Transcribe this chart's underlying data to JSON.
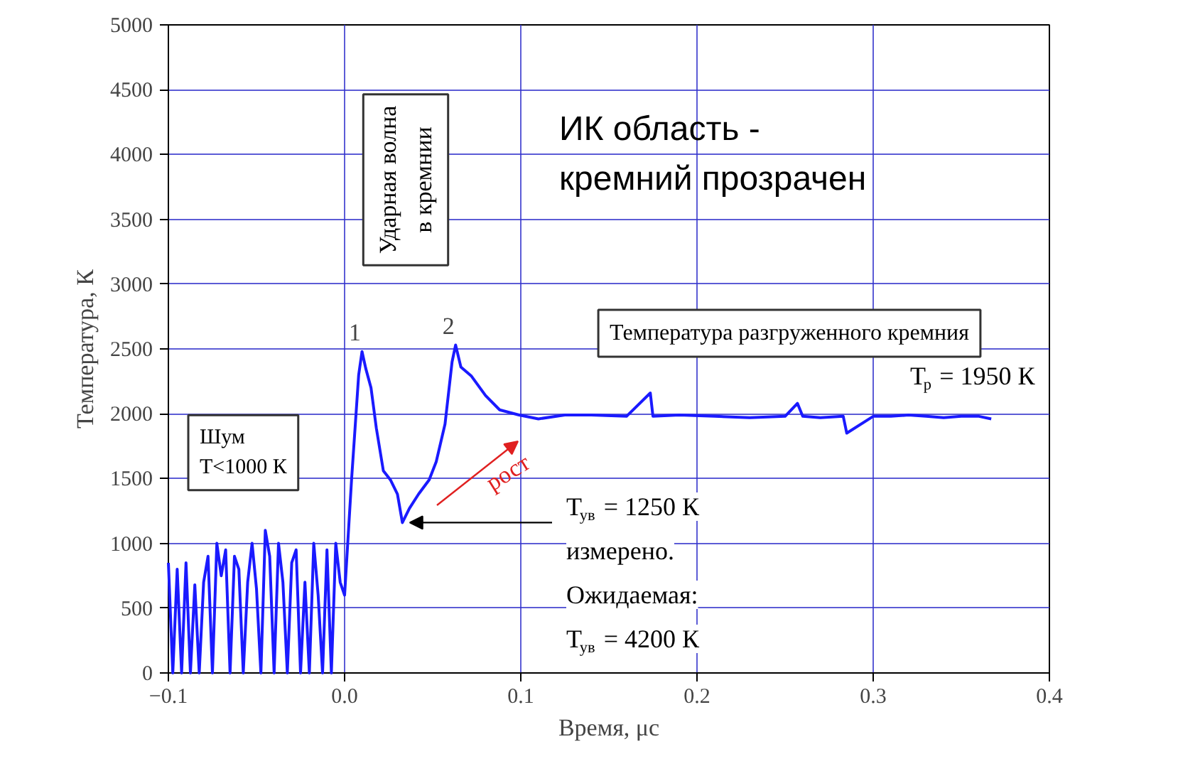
{
  "chart_data": {
    "type": "line",
    "xlabel": "Время, μс",
    "ylabel": "Температура, К",
    "xlim": [
      -0.1,
      0.4
    ],
    "ylim": [
      0,
      5000
    ],
    "xticks": [
      -0.1,
      {
        "value": 0,
        "label": "0.0"
      },
      0.1,
      0.2,
      0.3,
      0.4
    ],
    "yticks": [
      0,
      500,
      1000,
      1500,
      2000,
      2500,
      3000,
      3500,
      4000,
      4500,
      5000
    ],
    "grid": true,
    "marker": "none",
    "line_style": "solid",
    "series": [
      {
        "color": "#1a1aff",
        "x": [
          -0.1,
          -0.0975,
          -0.095,
          -0.0925,
          -0.09,
          -0.0875,
          -0.085,
          -0.0825,
          -0.08,
          -0.0775,
          -0.075,
          -0.0725,
          -0.07,
          -0.0675,
          -0.065,
          -0.0625,
          -0.06,
          -0.0575,
          -0.055,
          -0.0525,
          -0.05,
          -0.0475,
          -0.045,
          -0.0425,
          -0.04,
          -0.0375,
          -0.035,
          -0.0325,
          -0.03,
          -0.0275,
          -0.025,
          -0.0225,
          -0.02,
          -0.0175,
          -0.015,
          -0.0125,
          -0.01,
          -0.0075,
          -0.005,
          -0.0025,
          0.0,
          0.004,
          0.008,
          0.0099,
          0.012,
          0.015,
          0.018,
          0.022,
          0.026,
          0.03,
          0.0328,
          0.0368,
          0.042,
          0.048,
          0.052,
          0.057,
          0.061,
          0.063,
          0.066,
          0.072,
          0.08,
          0.088,
          0.099,
          0.11,
          0.125,
          0.14,
          0.16,
          0.1735,
          0.175,
          0.19,
          0.21,
          0.23,
          0.25,
          0.257,
          0.26,
          0.27,
          0.283,
          0.285,
          0.3,
          0.31,
          0.32,
          0.33,
          0.34,
          0.35,
          0.36,
          0.367
        ],
        "values": [
          850,
          0,
          800,
          0,
          850,
          0,
          680,
          0,
          700,
          900,
          0,
          1000,
          750,
          950,
          0,
          900,
          800,
          0,
          700,
          1000,
          650,
          0,
          1100,
          900,
          0,
          1000,
          700,
          0,
          850,
          950,
          0,
          700,
          0,
          1000,
          600,
          0,
          950,
          0,
          1000,
          700,
          600,
          1500,
          2300,
          2480,
          2350,
          2200,
          1890,
          1560,
          1490,
          1380,
          1160,
          1270,
          1380,
          1490,
          1630,
          1920,
          2400,
          2530,
          2360,
          2290,
          2140,
          2030,
          1990,
          1960,
          1990,
          1990,
          1980,
          2160,
          1980,
          1990,
          1980,
          1970,
          1980,
          2080,
          1980,
          1970,
          1980,
          1850,
          1980,
          1980,
          1990,
          1980,
          1970,
          1980,
          1980,
          1960
        ]
      }
    ],
    "annotations": [
      "Ударная волна\nв кремнии",
      "ИК область -\nкремний прозрачен",
      "Температура разгруженного кремния",
      "T$_{р}$ = 1950 К",
      "рост",
      {
        "text": "T$_{ув}$ = 1250 К\nизмерено.\nОжидаемая:\nT$_{ув}$ = 4200 К",
        "x": 0.033,
        "y": 1160
      },
      "Шум\nT<1000 К",
      {
        "text": "1",
        "x": 0.0099,
        "y": 2480
      },
      {
        "text": "2",
        "x": 0.063,
        "y": 2530
      }
    ]
  }
}
